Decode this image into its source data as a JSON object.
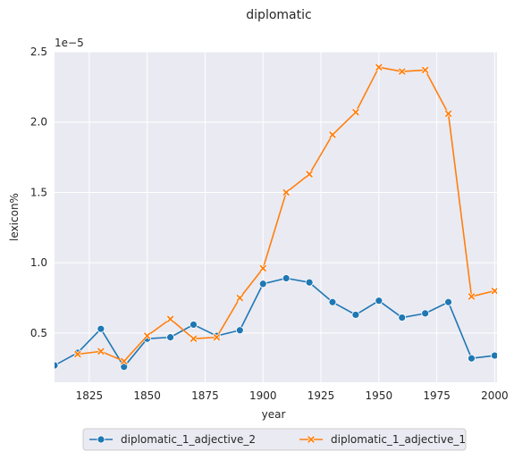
{
  "chart_data": {
    "type": "line",
    "title": "diplomatic",
    "xlabel": "year",
    "ylabel": "lexicon%",
    "y_offset_label": "1e−5",
    "xlim": [
      1810,
      2001
    ],
    "ylim": [
      0.15,
      2.5
    ],
    "x_ticks": [
      1825,
      1850,
      1875,
      1900,
      1925,
      1950,
      1975,
      2000
    ],
    "x_tick_labels": [
      "1825",
      "1850",
      "1875",
      "1900",
      "1925",
      "1950",
      "1975",
      "2000"
    ],
    "y_ticks": [
      0.5,
      1.0,
      1.5,
      2.0,
      2.5
    ],
    "y_tick_labels": [
      "0.5",
      "1.0",
      "1.5",
      "2.0",
      "2.5"
    ],
    "grid": true,
    "legend_position": "bottom-center-outside",
    "series": [
      {
        "name": "diplomatic_1_adjective_2",
        "color": "#1f77b4",
        "marker": "circle",
        "x": [
          1810,
          1820,
          1830,
          1840,
          1850,
          1860,
          1870,
          1880,
          1890,
          1900,
          1910,
          1920,
          1930,
          1940,
          1950,
          1960,
          1970,
          1980,
          1990,
          2000
        ],
        "y": [
          0.27,
          0.36,
          0.53,
          0.26,
          0.46,
          0.47,
          0.56,
          0.48,
          0.52,
          0.85,
          0.89,
          0.86,
          0.72,
          0.63,
          0.73,
          0.61,
          0.64,
          0.72,
          0.32,
          0.34
        ]
      },
      {
        "name": "diplomatic_1_adjective_1",
        "color": "#ff7f0e",
        "marker": "x",
        "x": [
          1820,
          1830,
          1840,
          1850,
          1860,
          1870,
          1880,
          1890,
          1900,
          1910,
          1920,
          1930,
          1940,
          1950,
          1960,
          1970,
          1980,
          1990,
          2000
        ],
        "y": [
          0.35,
          0.37,
          0.3,
          0.48,
          0.6,
          0.46,
          0.47,
          0.75,
          0.96,
          1.5,
          1.63,
          1.91,
          2.07,
          2.39,
          2.36,
          2.37,
          2.06,
          0.76,
          0.8
        ]
      }
    ]
  }
}
